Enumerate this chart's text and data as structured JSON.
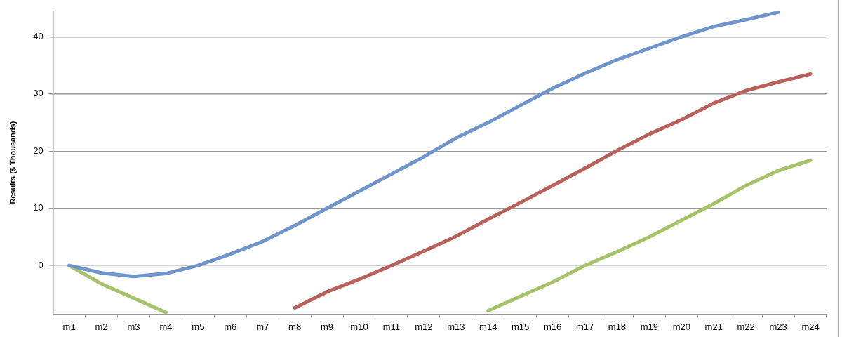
{
  "chart_data": {
    "type": "line",
    "ylabel": "Results ($ Thousands)",
    "categories": [
      "m1",
      "m2",
      "m3",
      "m4",
      "m5",
      "m6",
      "m7",
      "m8",
      "m9",
      "m10",
      "m11",
      "m12",
      "m13",
      "m14",
      "m15",
      "m16",
      "m17",
      "m18",
      "m19",
      "m20",
      "m21",
      "m22",
      "m23",
      "m24"
    ],
    "series": [
      {
        "color": "#6f95cc",
        "values": [
          0,
          -1.3,
          -1.9,
          -1.4,
          0,
          2,
          4.2,
          7,
          10,
          13,
          16,
          19,
          22.3,
          25,
          28,
          31,
          33.6,
          36,
          38,
          40,
          41.8,
          43,
          44.3,
          null
        ]
      },
      {
        "color": "#b9605a",
        "values": [
          null,
          null,
          null,
          null,
          null,
          null,
          null,
          -7.4,
          -4.6,
          -2.4,
          0,
          2.5,
          5.1,
          8.1,
          11,
          14,
          17,
          20.1,
          23,
          25.5,
          28.4,
          30.6,
          32.1,
          33.5
        ]
      },
      {
        "color": "#a7c36a",
        "values": [
          0,
          -3.2,
          -5.7,
          -8.2,
          null,
          null,
          null,
          null,
          null,
          null,
          null,
          null,
          null,
          -7.9,
          -5.4,
          -2.9,
          0,
          2.4,
          5,
          7.9,
          10.8,
          14,
          16.6,
          18.4
        ]
      }
    ],
    "ylim": [
      -8.5,
      44.5
    ],
    "yticks": [
      0,
      10,
      20,
      30,
      40
    ],
    "grid": "y",
    "legend": false,
    "marker": "none",
    "line_style": "solid"
  }
}
